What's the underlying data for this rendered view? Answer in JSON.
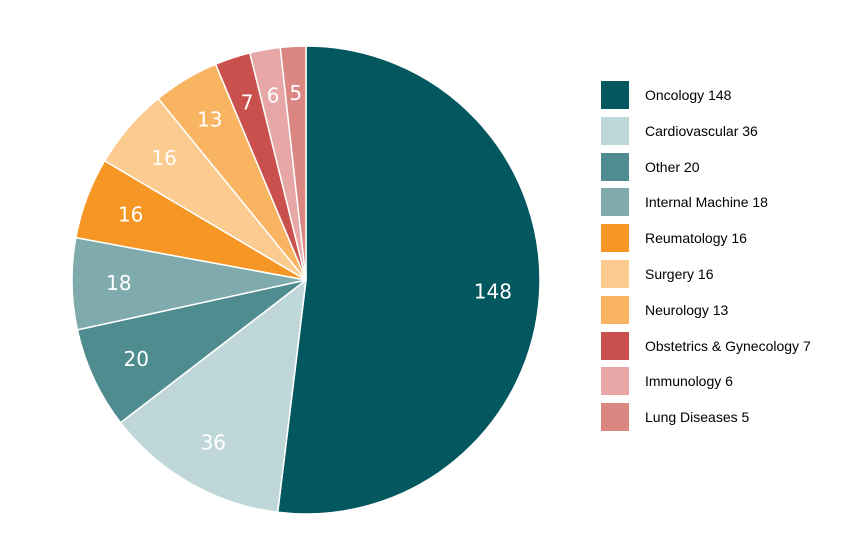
{
  "chart_data": {
    "type": "pie",
    "slices": [
      {
        "category": "Oncology",
        "value": 148,
        "legend_label": "Oncology 148",
        "slice_label": "148",
        "color": "#02585E"
      },
      {
        "category": "Cardiovascular",
        "value": 36,
        "legend_label": "Cardiovascular 36",
        "slice_label": "36",
        "color": "#BFD7D8"
      },
      {
        "category": "Other",
        "value": 20,
        "legend_label": "Other 20",
        "slice_label": "20",
        "color": "#4E8C8F"
      },
      {
        "category": "Internal Machine",
        "value": 18,
        "legend_label": "Internal Machine 18",
        "slice_label": "18",
        "color": "#80ABAD"
      },
      {
        "category": "Reumatology",
        "value": 16,
        "legend_label": "Reumatology 16",
        "slice_label": "16",
        "color": "#F59625"
      },
      {
        "category": "Surgery",
        "value": 16,
        "legend_label": "Surgery 16",
        "slice_label": "16",
        "color": "#FBCB90"
      },
      {
        "category": "Neurology",
        "value": 13,
        "legend_label": "Neurology 13",
        "slice_label": "13",
        "color": "#F9B462"
      },
      {
        "category": "Obstetrics & Gynecology",
        "value": 7,
        "legend_label": "Obstetrics & Gynecology 7",
        "slice_label": "7",
        "color": "#C9504D"
      },
      {
        "category": "Immunology",
        "value": 6,
        "legend_label": "Immunology 6",
        "slice_label": "6",
        "color": "#E6A7A6"
      },
      {
        "category": "Lung Diseases",
        "value": 5,
        "legend_label": "Lung Diseases 5",
        "slice_label": "5",
        "color": "#DB8681"
      }
    ],
    "start_angle": "12 o'clock",
    "direction": "clockwise",
    "legend_position": "right"
  }
}
